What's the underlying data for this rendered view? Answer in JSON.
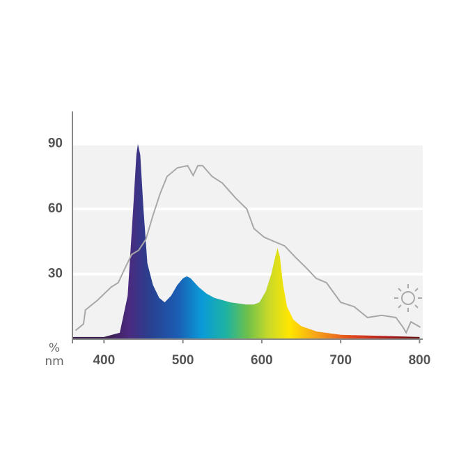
{
  "chart_data": {
    "type": "area",
    "x_label": "nm",
    "y_label": "%",
    "xlim": [
      360,
      804
    ],
    "ylim": [
      0,
      105
    ],
    "xticks": [
      400,
      500,
      600,
      700,
      800
    ],
    "yticks": [
      30,
      60,
      90
    ],
    "grid": true,
    "series": [
      {
        "type": "area",
        "color": "#2a3f8f",
        "x": [
          360,
          400,
          420,
          430,
          437,
          441,
          443,
          446,
          450,
          455,
          462,
          470,
          477,
          485,
          493,
          500,
          505,
          510,
          520,
          530,
          540,
          550,
          560,
          570,
          580,
          590,
          597,
          605,
          612,
          617,
          620,
          623,
          627,
          632,
          640,
          650,
          670,
          700,
          750,
          800
        ],
        "values": [
          1,
          1,
          3,
          20,
          60,
          85,
          90,
          85,
          60,
          35,
          25,
          19,
          17,
          20,
          25,
          28,
          29,
          28,
          24,
          21,
          19,
          18,
          17,
          16.5,
          16,
          16,
          17,
          22,
          30,
          38,
          42,
          38,
          25,
          15,
          9,
          6,
          3.5,
          2,
          1.5,
          1
        ]
      },
      {
        "type": "line",
        "color": "#a8a8a8",
        "x": [
          364,
          374,
          376.5,
          392,
          409,
          418,
          427,
          435,
          444,
          453,
          462,
          471,
          480,
          493,
          506,
          513,
          519,
          525,
          537,
          550,
          567,
          581,
          590,
          603,
          616,
          629,
          642,
          656,
          669,
          682,
          700,
          717,
          734,
          752,
          770,
          779,
          783,
          789,
          801
        ],
        "values": [
          4,
          7,
          13.5,
          18,
          24,
          26,
          33,
          39,
          41,
          46,
          57,
          67,
          75,
          79,
          80,
          75.5,
          80,
          80,
          75,
          72,
          65,
          60,
          51,
          47,
          45,
          43,
          38,
          33,
          28,
          26,
          17,
          15,
          10,
          11,
          10,
          5.5,
          3,
          8,
          5.5
        ]
      }
    ]
  }
}
